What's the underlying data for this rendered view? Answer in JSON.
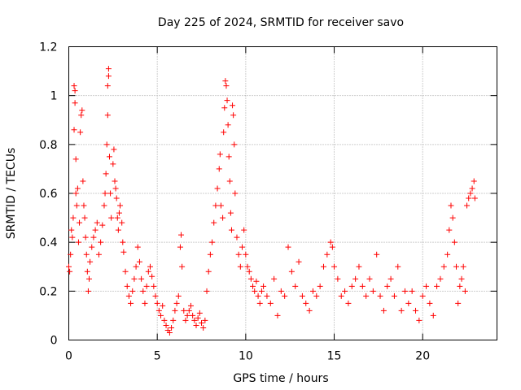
{
  "chart_data": {
    "type": "scatter",
    "title": "Day 225 of 2024, SRMTID for receiver savo",
    "xlabel": "GPS time / hours",
    "ylabel": "SRMTID / TECUs",
    "xlim": [
      0,
      24.2
    ],
    "ylim": [
      0,
      1.2
    ],
    "xticks": [
      0,
      5,
      10,
      15,
      20
    ],
    "xtick_labels": [
      "0",
      "5",
      "10",
      "15",
      "20"
    ],
    "yticks": [
      0,
      0.2,
      0.4,
      0.6,
      0.8,
      1.0,
      1.2
    ],
    "ytick_labels": [
      "0",
      "0.2",
      "0.4",
      "0.6",
      "0.8",
      "1",
      "1.2"
    ],
    "grid": true,
    "marker": "+",
    "color": "#ff0000",
    "series": [
      {
        "name": "SRMTID",
        "points": [
          [
            0.0,
            0.3
          ],
          [
            0.05,
            0.28
          ],
          [
            0.1,
            0.35
          ],
          [
            0.15,
            0.45
          ],
          [
            0.2,
            0.42
          ],
          [
            0.25,
            0.5
          ],
          [
            0.3,
            0.86
          ],
          [
            0.3,
            1.04
          ],
          [
            0.35,
            1.02
          ],
          [
            0.35,
            0.97
          ],
          [
            0.4,
            0.74
          ],
          [
            0.4,
            0.6
          ],
          [
            0.45,
            0.55
          ],
          [
            0.5,
            0.62
          ],
          [
            0.55,
            0.4
          ],
          [
            0.6,
            0.48
          ],
          [
            0.65,
            0.85
          ],
          [
            0.7,
            0.92
          ],
          [
            0.75,
            0.94
          ],
          [
            0.8,
            0.65
          ],
          [
            0.85,
            0.55
          ],
          [
            0.9,
            0.5
          ],
          [
            0.95,
            0.42
          ],
          [
            1.0,
            0.35
          ],
          [
            1.05,
            0.28
          ],
          [
            1.1,
            0.2
          ],
          [
            1.15,
            0.25
          ],
          [
            1.2,
            0.32
          ],
          [
            1.3,
            0.38
          ],
          [
            1.4,
            0.42
          ],
          [
            1.5,
            0.45
          ],
          [
            1.6,
            0.48
          ],
          [
            1.7,
            0.35
          ],
          [
            1.8,
            0.4
          ],
          [
            1.9,
            0.47
          ],
          [
            2.0,
            0.55
          ],
          [
            2.05,
            0.6
          ],
          [
            2.1,
            0.68
          ],
          [
            2.15,
            0.8
          ],
          [
            2.2,
            0.92
          ],
          [
            2.2,
            1.04
          ],
          [
            2.25,
            1.08
          ],
          [
            2.25,
            1.11
          ],
          [
            2.3,
            0.75
          ],
          [
            2.35,
            0.6
          ],
          [
            2.4,
            0.5
          ],
          [
            2.5,
            0.72
          ],
          [
            2.55,
            0.78
          ],
          [
            2.6,
            0.65
          ],
          [
            2.65,
            0.62
          ],
          [
            2.7,
            0.58
          ],
          [
            2.75,
            0.5
          ],
          [
            2.8,
            0.45
          ],
          [
            2.85,
            0.52
          ],
          [
            2.9,
            0.55
          ],
          [
            3.0,
            0.48
          ],
          [
            3.05,
            0.4
          ],
          [
            3.1,
            0.36
          ],
          [
            3.2,
            0.28
          ],
          [
            3.3,
            0.22
          ],
          [
            3.4,
            0.18
          ],
          [
            3.5,
            0.15
          ],
          [
            3.6,
            0.2
          ],
          [
            3.7,
            0.25
          ],
          [
            3.8,
            0.3
          ],
          [
            3.9,
            0.38
          ],
          [
            4.0,
            0.32
          ],
          [
            4.1,
            0.25
          ],
          [
            4.2,
            0.2
          ],
          [
            4.3,
            0.15
          ],
          [
            4.4,
            0.22
          ],
          [
            4.5,
            0.28
          ],
          [
            4.6,
            0.3
          ],
          [
            4.7,
            0.26
          ],
          [
            4.8,
            0.22
          ],
          [
            4.9,
            0.18
          ],
          [
            5.0,
            0.15
          ],
          [
            5.1,
            0.12
          ],
          [
            5.2,
            0.1
          ],
          [
            5.3,
            0.14
          ],
          [
            5.4,
            0.08
          ],
          [
            5.5,
            0.06
          ],
          [
            5.6,
            0.04
          ],
          [
            5.7,
            0.03
          ],
          [
            5.8,
            0.05
          ],
          [
            5.9,
            0.08
          ],
          [
            6.0,
            0.12
          ],
          [
            6.1,
            0.15
          ],
          [
            6.2,
            0.18
          ],
          [
            6.3,
            0.38
          ],
          [
            6.35,
            0.43
          ],
          [
            6.4,
            0.3
          ],
          [
            6.5,
            0.12
          ],
          [
            6.6,
            0.08
          ],
          [
            6.7,
            0.1
          ],
          [
            6.8,
            0.12
          ],
          [
            6.9,
            0.14
          ],
          [
            7.0,
            0.1
          ],
          [
            7.1,
            0.08
          ],
          [
            7.2,
            0.06
          ],
          [
            7.3,
            0.09
          ],
          [
            7.4,
            0.11
          ],
          [
            7.5,
            0.07
          ],
          [
            7.6,
            0.05
          ],
          [
            7.7,
            0.08
          ],
          [
            7.8,
            0.2
          ],
          [
            7.9,
            0.28
          ],
          [
            8.0,
            0.35
          ],
          [
            8.1,
            0.4
          ],
          [
            8.2,
            0.48
          ],
          [
            8.3,
            0.55
          ],
          [
            8.4,
            0.62
          ],
          [
            8.5,
            0.7
          ],
          [
            8.55,
            0.76
          ],
          [
            8.6,
            0.55
          ],
          [
            8.7,
            0.5
          ],
          [
            8.75,
            0.85
          ],
          [
            8.8,
            0.95
          ],
          [
            8.85,
            1.06
          ],
          [
            8.9,
            1.04
          ],
          [
            8.95,
            0.98
          ],
          [
            9.0,
            0.88
          ],
          [
            9.05,
            0.75
          ],
          [
            9.1,
            0.65
          ],
          [
            9.15,
            0.52
          ],
          [
            9.2,
            0.45
          ],
          [
            9.25,
            0.96
          ],
          [
            9.3,
            0.92
          ],
          [
            9.35,
            0.8
          ],
          [
            9.4,
            0.6
          ],
          [
            9.5,
            0.42
          ],
          [
            9.6,
            0.35
          ],
          [
            9.7,
            0.3
          ],
          [
            9.8,
            0.38
          ],
          [
            9.9,
            0.45
          ],
          [
            10.0,
            0.35
          ],
          [
            10.1,
            0.3
          ],
          [
            10.2,
            0.28
          ],
          [
            10.3,
            0.25
          ],
          [
            10.4,
            0.22
          ],
          [
            10.5,
            0.2
          ],
          [
            10.6,
            0.24
          ],
          [
            10.7,
            0.18
          ],
          [
            10.8,
            0.15
          ],
          [
            10.9,
            0.2
          ],
          [
            11.0,
            0.22
          ],
          [
            11.2,
            0.18
          ],
          [
            11.4,
            0.15
          ],
          [
            11.6,
            0.25
          ],
          [
            11.8,
            0.1
          ],
          [
            12.0,
            0.2
          ],
          [
            12.2,
            0.18
          ],
          [
            12.4,
            0.38
          ],
          [
            12.6,
            0.28
          ],
          [
            12.8,
            0.22
          ],
          [
            13.0,
            0.32
          ],
          [
            13.2,
            0.18
          ],
          [
            13.4,
            0.15
          ],
          [
            13.6,
            0.12
          ],
          [
            13.8,
            0.2
          ],
          [
            14.0,
            0.18
          ],
          [
            14.2,
            0.22
          ],
          [
            14.4,
            0.3
          ],
          [
            14.6,
            0.35
          ],
          [
            14.8,
            0.4
          ],
          [
            14.9,
            0.38
          ],
          [
            15.0,
            0.3
          ],
          [
            15.2,
            0.25
          ],
          [
            15.4,
            0.18
          ],
          [
            15.6,
            0.2
          ],
          [
            15.8,
            0.15
          ],
          [
            16.0,
            0.22
          ],
          [
            16.2,
            0.25
          ],
          [
            16.4,
            0.3
          ],
          [
            16.6,
            0.22
          ],
          [
            16.8,
            0.18
          ],
          [
            17.0,
            0.25
          ],
          [
            17.2,
            0.2
          ],
          [
            17.4,
            0.35
          ],
          [
            17.6,
            0.18
          ],
          [
            17.8,
            0.12
          ],
          [
            18.0,
            0.22
          ],
          [
            18.2,
            0.25
          ],
          [
            18.4,
            0.18
          ],
          [
            18.6,
            0.3
          ],
          [
            18.8,
            0.12
          ],
          [
            19.0,
            0.2
          ],
          [
            19.2,
            0.15
          ],
          [
            19.4,
            0.2
          ],
          [
            19.6,
            0.12
          ],
          [
            19.8,
            0.08
          ],
          [
            20.0,
            0.18
          ],
          [
            20.2,
            0.22
          ],
          [
            20.4,
            0.15
          ],
          [
            20.6,
            0.1
          ],
          [
            20.8,
            0.22
          ],
          [
            21.0,
            0.25
          ],
          [
            21.2,
            0.3
          ],
          [
            21.4,
            0.35
          ],
          [
            21.5,
            0.45
          ],
          [
            21.6,
            0.55
          ],
          [
            21.7,
            0.5
          ],
          [
            21.8,
            0.4
          ],
          [
            21.9,
            0.3
          ],
          [
            22.0,
            0.15
          ],
          [
            22.1,
            0.22
          ],
          [
            22.2,
            0.25
          ],
          [
            22.3,
            0.3
          ],
          [
            22.4,
            0.2
          ],
          [
            22.5,
            0.55
          ],
          [
            22.6,
            0.58
          ],
          [
            22.7,
            0.6
          ],
          [
            22.8,
            0.62
          ],
          [
            22.9,
            0.65
          ],
          [
            22.95,
            0.58
          ]
        ]
      }
    ]
  }
}
